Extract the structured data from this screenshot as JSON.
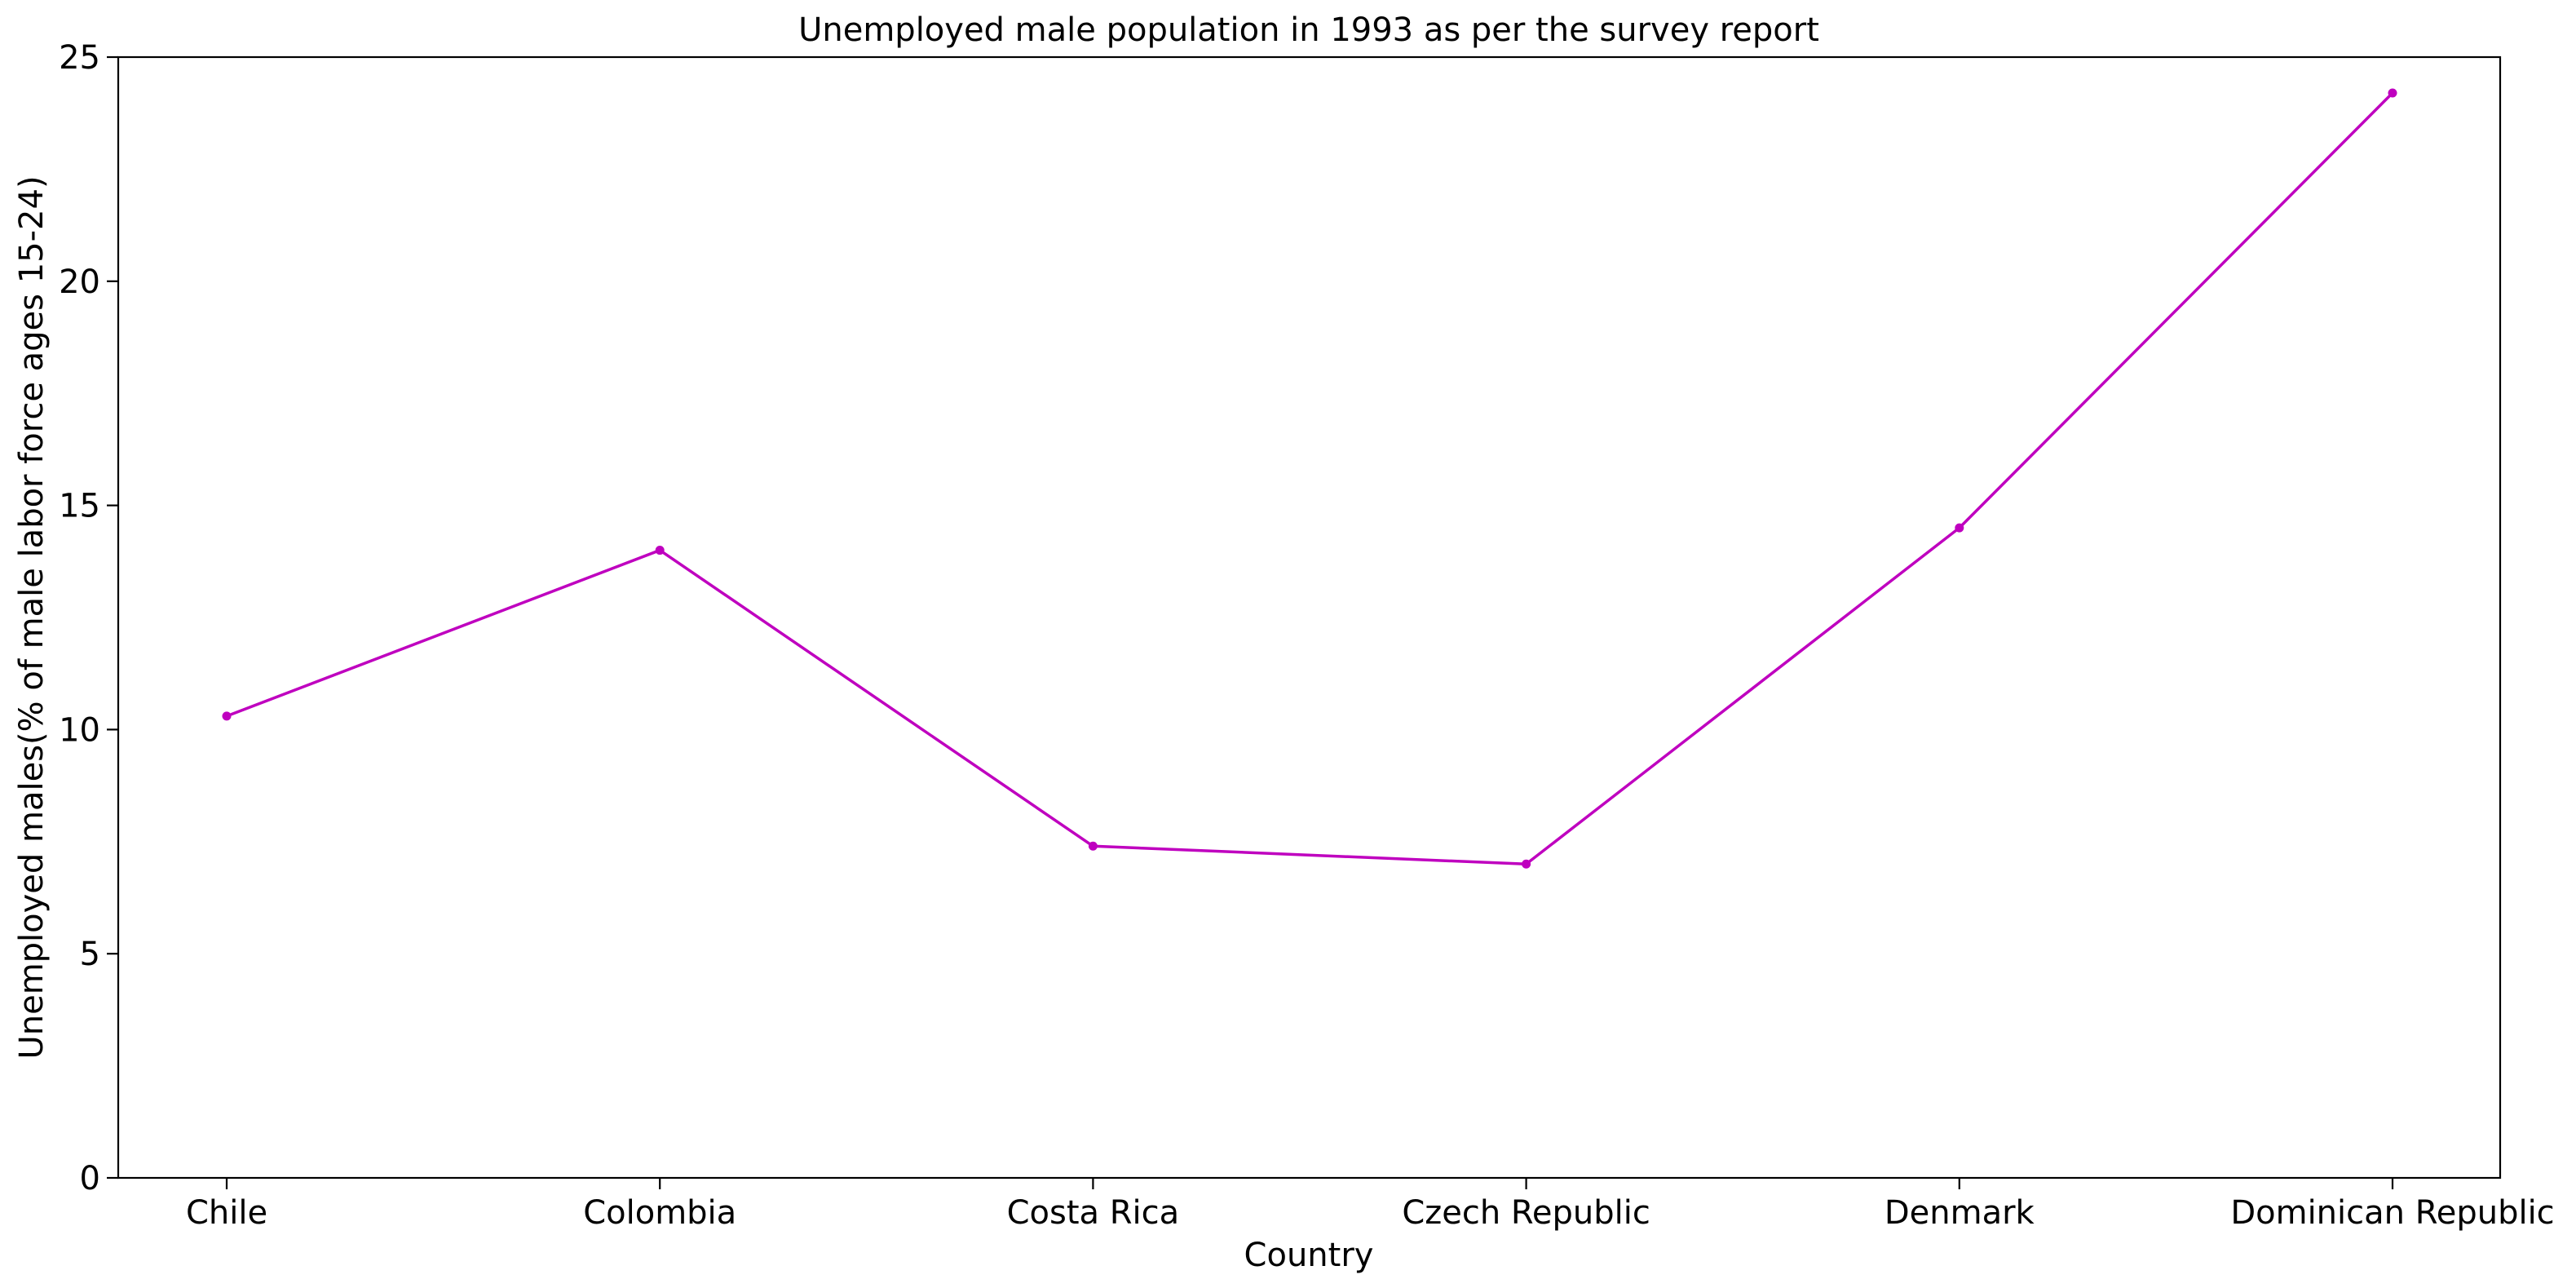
{
  "chart_data": {
    "type": "line",
    "title": "Unemployed male population in 1993 as per the survey report",
    "xlabel": "Country",
    "ylabel": "Unemployed males(% of male labor force ages 15-24)",
    "categories": [
      "Chile",
      "Colombia",
      "Costa Rica",
      "Czech Republic",
      "Denmark",
      "Dominican Republic"
    ],
    "series": [
      {
        "values": [
          10.3,
          14.0,
          7.4,
          7.0,
          14.5,
          24.2
        ],
        "color": "#bf00bf",
        "marker": "dot"
      }
    ],
    "ylim": [
      0,
      25
    ],
    "yticks": [
      "0",
      "5",
      "10",
      "15",
      "20",
      "25"
    ],
    "grid": false,
    "legend": "none"
  }
}
